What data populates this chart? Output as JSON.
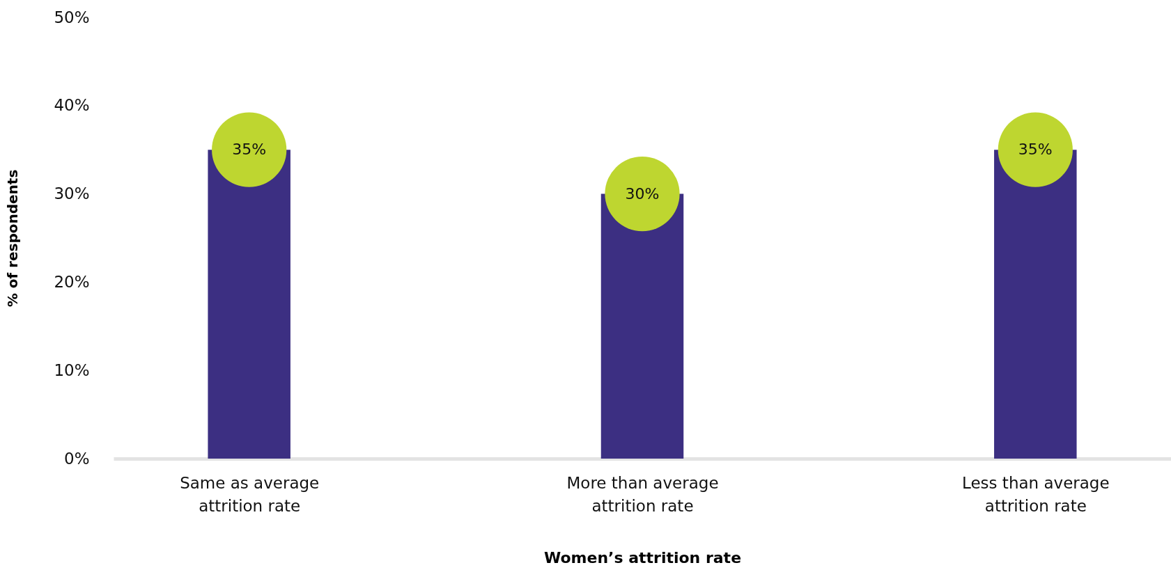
{
  "chart_data": {
    "type": "bar",
    "xlabel": "Women’s attrition rate",
    "ylabel": "% of respondents",
    "categories": [
      "Same as average attrition rate",
      "More than average attrition rate",
      "Less than average attrition rate"
    ],
    "series": [
      {
        "color": "#3c2f82",
        "values": [
          35,
          30,
          35
        ]
      },
      {
        "type": "scatter",
        "color": "#bed630",
        "x": [
          "Same as average attrition rate",
          "More than average attrition rate",
          "Less than average attrition rate"
        ],
        "values": [
          35,
          30,
          35
        ]
      }
    ],
    "value_labels": [
      "35%",
      "30%",
      "35%"
    ],
    "marker": "circle",
    "ylim": [
      0,
      50
    ],
    "yticks": [
      {
        "value": 0,
        "label": "0%"
      },
      {
        "value": 10,
        "label": "10%"
      },
      {
        "value": 20,
        "label": "20%"
      },
      {
        "value": 30,
        "label": "30%"
      },
      {
        "value": 40,
        "label": "40%"
      },
      {
        "value": 50,
        "label": "50%"
      }
    ],
    "grid": false
  }
}
